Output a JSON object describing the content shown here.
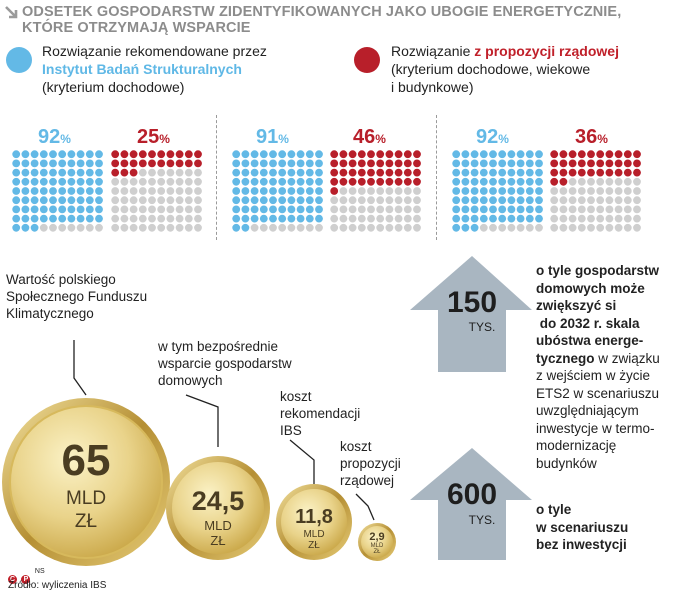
{
  "title_line1": "ODSETEK GOSPODARSTW ZIDENTYFIKOWANYCH JAKO UBOGIE ENERGETYCZNIE,",
  "title_line2": "KTÓRE OTRZYMAJĄ WSPARCIE",
  "legend": {
    "blue": {
      "line1": "Rozwiązanie rekomendowane przez",
      "line2": "Instytut Badań Strukturalnych",
      "line3": "(kryterium dochodowe)",
      "color": "#63b9e6"
    },
    "red": {
      "line1_prefix": "Rozwiązanie ",
      "line1_strong": "z propozycji rządowej",
      "line2": "(kryterium dochodowe, wiekowe",
      "line3": "i budynkowe)",
      "color": "#b81f2a"
    }
  },
  "chart_data": [
    {
      "type": "waffle",
      "groups": [
        {
          "series": "Rozwiązanie rekomendowane przez Instytut Badań Strukturalnych",
          "value": 92,
          "label": "92",
          "unit": "%"
        },
        {
          "series": "Rozwiązanie z propozycji rządowej",
          "value": 25,
          "label": "25",
          "unit": "%"
        },
        {
          "series": "Rozwiązanie rekomendowane przez Instytut Badań Strukturalnych",
          "value": 91,
          "label": "91",
          "unit": "%"
        },
        {
          "series": "Rozwiązanie z propozycji rządowej",
          "value": 46,
          "label": "46",
          "unit": "%"
        },
        {
          "series": "Rozwiązanie rekomendowane przez Instytut Badań Strukturalnych",
          "value": 92,
          "label": "92",
          "unit": "%"
        },
        {
          "series": "Rozwiązanie z propozycji rządowej",
          "value": 36,
          "label": "36",
          "unit": "%"
        }
      ]
    },
    {
      "type": "bubble",
      "unit": "MLD ZŁ",
      "items": [
        {
          "value": 65,
          "label": "65",
          "unit_line1": "MLD",
          "unit_line2": "ZŁ",
          "caption": [
            "Wartość polskiego",
            "Społecznego Funduszu",
            "Klimatycznego"
          ]
        },
        {
          "value": 24.5,
          "label": "24,5",
          "unit_line1": "MLD",
          "unit_line2": "ZŁ",
          "caption": [
            "w tym bezpośrednie",
            "wsparcie gospodarstw",
            "domowych"
          ]
        },
        {
          "value": 11.8,
          "label": "11,8",
          "unit_line1": "MLD",
          "unit_line2": "ZŁ",
          "caption": [
            "koszt",
            "rekomendacji",
            "IBS"
          ]
        },
        {
          "value": 2.9,
          "label": "2,9",
          "unit_line1": "MLD",
          "unit_line2": "ZŁ",
          "caption": [
            "koszt",
            "propozycji",
            "rządowej"
          ]
        }
      ]
    }
  ],
  "colors": {
    "blue": "#63b9e6",
    "red": "#b81f2a",
    "gray": "#cfcfcf",
    "arrow": "#a9b6c1",
    "gold": "#c9a646"
  },
  "arrows": [
    {
      "value": 150,
      "label": "150",
      "unit": "TYS."
    },
    {
      "value": 600,
      "label": "600",
      "unit": "TYS."
    }
  ],
  "desc1": {
    "bold": [
      "o tyle gospodarstw",
      "domowych może",
      "zwiększyć si",
      " do 2032 r. skala",
      "ubóstwa energe-"
    ],
    "line6_bold": "tycznego",
    "line6_rest": " w związku",
    "rest": [
      "z wejściem w życie",
      "ETS2 w scenariuszu",
      "uwzględniającym",
      "inwestycje w termo-",
      "modernizację",
      "budynków"
    ]
  },
  "desc2": [
    "o tyle",
    "w scenariuszu",
    "bez inwestycji"
  ],
  "credit": "NS",
  "source": "Źródło: wyliczenia IBS"
}
